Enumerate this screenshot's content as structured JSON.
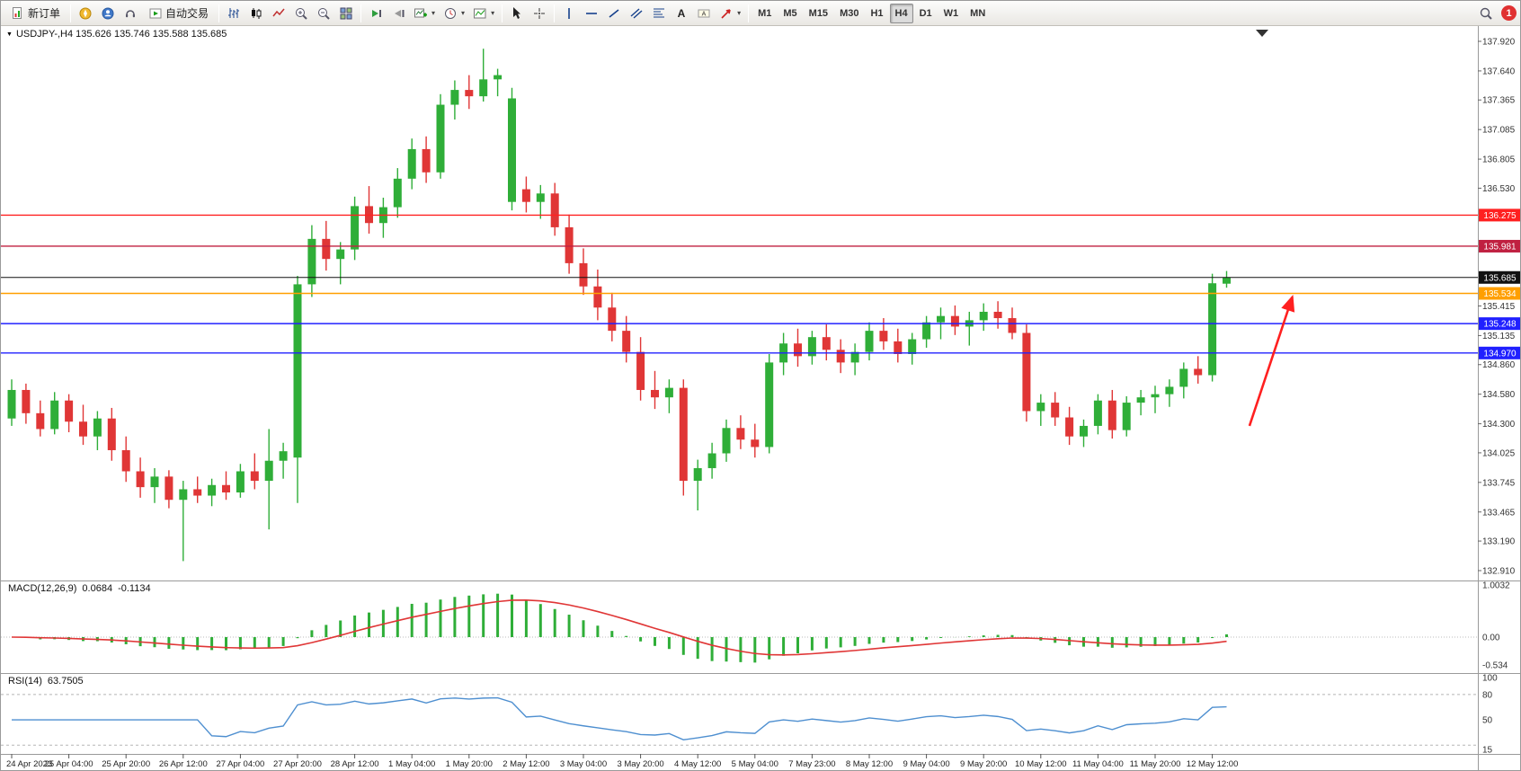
{
  "toolbar": {
    "new_order_label": "新订单",
    "autotrade_label": "自动交易",
    "timeframes": [
      {
        "label": "M1"
      },
      {
        "label": "M5"
      },
      {
        "label": "M15"
      },
      {
        "label": "M30"
      },
      {
        "label": "H1"
      },
      {
        "label": "H4"
      },
      {
        "label": "D1"
      },
      {
        "label": "W1"
      },
      {
        "label": "MN"
      }
    ],
    "active_timeframe": "H4",
    "notification_count": "1"
  },
  "chart": {
    "title": "USDJPY-,H4 135.626 135.746 135.588 135.685",
    "symbol": "USDJPY-",
    "timeframe": "H4",
    "ohlc": {
      "open": "135.626",
      "high": "135.746",
      "low": "135.588",
      "close": "135.685"
    }
  },
  "macd_panel": {
    "label": "MACD(12,26,9)",
    "value_macd": "0.0684",
    "value_signal": "-0.1134",
    "axis": [
      {
        "label": "1.0032",
        "value": 1.0032
      },
      {
        "label": "0.00",
        "value": 0
      },
      {
        "label": "-0.534",
        "value": -0.534
      }
    ]
  },
  "rsi_panel": {
    "label": "RSI(14)",
    "value": "63.7505",
    "axis": [
      {
        "label": "100",
        "value": 100
      },
      {
        "label": "80",
        "value": 80
      },
      {
        "label": "50",
        "value": 50
      },
      {
        "label": "15",
        "value": 15
      }
    ]
  },
  "chart_data": {
    "type": "candlestick",
    "title": "USDJPY- H4",
    "ylim": [
      132.91,
      137.92
    ],
    "price_axis": [
      {
        "label": "137.920",
        "value": 137.92
      },
      {
        "label": "137.640",
        "value": 137.64
      },
      {
        "label": "137.365",
        "value": 137.365
      },
      {
        "label": "137.085",
        "value": 137.085
      },
      {
        "label": "136.805",
        "value": 136.805
      },
      {
        "label": "136.530",
        "value": 136.53
      },
      {
        "label": "135.415",
        "value": 135.415
      },
      {
        "label": "135.135",
        "value": 135.135
      },
      {
        "label": "134.860",
        "value": 134.86
      },
      {
        "label": "134.580",
        "value": 134.58
      },
      {
        "label": "134.300",
        "value": 134.3
      },
      {
        "label": "134.025",
        "value": 134.025
      },
      {
        "label": "133.745",
        "value": 133.745
      },
      {
        "label": "133.465",
        "value": 133.465
      },
      {
        "label": "133.190",
        "value": 133.19
      },
      {
        "label": "132.910",
        "value": 132.91
      }
    ],
    "time_axis_labels": [
      "24 Apr 2023",
      "25 Apr 04:00",
      "25 Apr 20:00",
      "26 Apr 12:00",
      "27 Apr 04:00",
      "27 Apr 20:00",
      "28 Apr 12:00",
      "1 May 04:00",
      "1 May 20:00",
      "2 May 12:00",
      "3 May 04:00",
      "3 May 20:00",
      "4 May 12:00",
      "5 May 04:00",
      "7 May 23:00",
      "8 May 12:00",
      "9 May 04:00",
      "9 May 20:00",
      "10 May 12:00",
      "11 May 04:00",
      "11 May 20:00",
      "12 May 12:00"
    ],
    "label_every_n_candles": 4,
    "candles": [
      [
        134.35,
        134.72,
        134.28,
        134.62
      ],
      [
        134.62,
        134.68,
        134.3,
        134.4
      ],
      [
        134.4,
        134.52,
        134.18,
        134.25
      ],
      [
        134.25,
        134.6,
        134.2,
        134.52
      ],
      [
        134.52,
        134.58,
        134.22,
        134.32
      ],
      [
        134.32,
        134.48,
        134.1,
        134.18
      ],
      [
        134.18,
        134.42,
        134.05,
        134.35
      ],
      [
        134.35,
        134.45,
        133.95,
        134.05
      ],
      [
        134.05,
        134.18,
        133.75,
        133.85
      ],
      [
        133.85,
        133.98,
        133.6,
        133.7
      ],
      [
        133.7,
        133.88,
        133.55,
        133.8
      ],
      [
        133.8,
        133.86,
        133.5,
        133.58
      ],
      [
        133.58,
        133.76,
        133.0,
        133.68
      ],
      [
        133.68,
        133.8,
        133.55,
        133.62
      ],
      [
        133.62,
        133.78,
        133.52,
        133.72
      ],
      [
        133.72,
        133.85,
        133.58,
        133.65
      ],
      [
        133.65,
        133.92,
        133.6,
        133.85
      ],
      [
        133.85,
        134.02,
        133.68,
        133.76
      ],
      [
        133.76,
        134.25,
        133.3,
        133.95
      ],
      [
        133.95,
        134.12,
        133.78,
        134.04
      ],
      [
        133.98,
        135.7,
        133.55,
        135.62
      ],
      [
        135.62,
        136.18,
        135.5,
        136.05
      ],
      [
        136.05,
        136.22,
        135.75,
        135.86
      ],
      [
        135.86,
        136.02,
        135.62,
        135.95
      ],
      [
        135.95,
        136.45,
        135.85,
        136.36
      ],
      [
        136.36,
        136.55,
        136.1,
        136.2
      ],
      [
        136.2,
        136.44,
        136.06,
        136.35
      ],
      [
        136.35,
        136.72,
        136.25,
        136.62
      ],
      [
        136.62,
        137.0,
        136.52,
        136.9
      ],
      [
        136.9,
        137.02,
        136.58,
        136.68
      ],
      [
        136.68,
        137.42,
        136.62,
        137.32
      ],
      [
        137.32,
        137.55,
        137.18,
        137.46
      ],
      [
        137.46,
        137.6,
        137.28,
        137.4
      ],
      [
        137.4,
        137.85,
        137.35,
        137.56
      ],
      [
        137.56,
        137.66,
        137.4,
        137.6
      ],
      [
        136.4,
        137.48,
        136.32,
        137.38
      ],
      [
        136.52,
        136.64,
        136.3,
        136.4
      ],
      [
        136.4,
        136.56,
        136.24,
        136.48
      ],
      [
        136.48,
        136.58,
        136.08,
        136.16
      ],
      [
        136.16,
        136.28,
        135.72,
        135.82
      ],
      [
        135.82,
        135.96,
        135.52,
        135.6
      ],
      [
        135.6,
        135.76,
        135.28,
        135.4
      ],
      [
        135.4,
        135.54,
        135.08,
        135.18
      ],
      [
        135.18,
        135.32,
        134.88,
        134.98
      ],
      [
        134.98,
        135.12,
        134.52,
        134.62
      ],
      [
        134.62,
        134.8,
        134.44,
        134.55
      ],
      [
        134.55,
        134.72,
        134.4,
        134.64
      ],
      [
        134.64,
        134.72,
        133.62,
        133.76
      ],
      [
        133.76,
        133.96,
        133.48,
        133.88
      ],
      [
        133.88,
        134.12,
        133.78,
        134.02
      ],
      [
        134.02,
        134.34,
        133.94,
        134.26
      ],
      [
        134.26,
        134.38,
        134.06,
        134.15
      ],
      [
        134.15,
        134.3,
        133.98,
        134.08
      ],
      [
        134.08,
        134.96,
        134.02,
        134.88
      ],
      [
        134.88,
        135.16,
        134.76,
        135.06
      ],
      [
        135.06,
        135.2,
        134.84,
        134.94
      ],
      [
        134.94,
        135.18,
        134.86,
        135.12
      ],
      [
        135.12,
        135.24,
        134.9,
        135.0
      ],
      [
        135.0,
        135.1,
        134.78,
        134.88
      ],
      [
        134.88,
        135.06,
        134.76,
        134.98
      ],
      [
        134.98,
        135.26,
        134.9,
        135.18
      ],
      [
        135.18,
        135.3,
        135.0,
        135.08
      ],
      [
        135.08,
        135.2,
        134.88,
        134.96
      ],
      [
        134.96,
        135.16,
        134.86,
        135.1
      ],
      [
        135.1,
        135.32,
        135.02,
        135.26
      ],
      [
        135.26,
        135.4,
        135.1,
        135.32
      ],
      [
        135.32,
        135.42,
        135.14,
        135.22
      ],
      [
        135.22,
        135.36,
        135.04,
        135.28
      ],
      [
        135.28,
        135.44,
        135.18,
        135.36
      ],
      [
        135.36,
        135.46,
        135.2,
        135.3
      ],
      [
        135.3,
        135.4,
        135.1,
        135.16
      ],
      [
        135.16,
        135.24,
        134.32,
        134.42
      ],
      [
        134.42,
        134.58,
        134.28,
        134.5
      ],
      [
        134.5,
        134.6,
        134.28,
        134.36
      ],
      [
        134.36,
        134.46,
        134.1,
        134.18
      ],
      [
        134.18,
        134.34,
        134.08,
        134.28
      ],
      [
        134.28,
        134.58,
        134.2,
        134.52
      ],
      [
        134.52,
        134.62,
        134.16,
        134.24
      ],
      [
        134.24,
        134.56,
        134.18,
        134.5
      ],
      [
        134.5,
        134.62,
        134.38,
        134.55
      ],
      [
        134.55,
        134.66,
        134.4,
        134.58
      ],
      [
        134.58,
        134.72,
        134.46,
        134.65
      ],
      [
        134.65,
        134.88,
        134.54,
        134.82
      ],
      [
        134.82,
        134.94,
        134.68,
        134.76
      ],
      [
        134.76,
        135.72,
        134.7,
        135.63
      ],
      [
        135.626,
        135.746,
        135.588,
        135.685
      ]
    ],
    "colors": {
      "bull": "#2fae38",
      "bear": "#e03636",
      "macd_bar": "#2fae38",
      "macd_signal": "#e03636",
      "rsi_line": "#4e8fd0",
      "current_price": "#111111"
    },
    "hlines": [
      {
        "label": "136.275",
        "value": 136.275,
        "color": "#ff2020",
        "style": "solid"
      },
      {
        "label": "135.981",
        "value": 135.981,
        "color": "#c02040",
        "style": "solid"
      },
      {
        "label": "135.685",
        "value": 135.685,
        "color": "#111111",
        "style": "current-price"
      },
      {
        "label": "135.534",
        "value": 135.534,
        "color": "#ff9f00",
        "style": "solid"
      },
      {
        "label": "135.248",
        "value": 135.248,
        "color": "#2020ff",
        "style": "solid"
      },
      {
        "label": "134.970",
        "value": 134.97,
        "color": "#2020ff",
        "style": "solid"
      }
    ],
    "annotations": [
      {
        "type": "arrow",
        "color": "#ff2020",
        "from": {
          "index": 86.6,
          "price": 134.28
        },
        "to": {
          "index": 89.6,
          "price": 135.5
        }
      }
    ],
    "indicators": {
      "macd": {
        "fast": 12,
        "slow": 26,
        "signal": 9
      },
      "rsi": {
        "period": 14,
        "levels": [
          80,
          20
        ]
      }
    }
  }
}
